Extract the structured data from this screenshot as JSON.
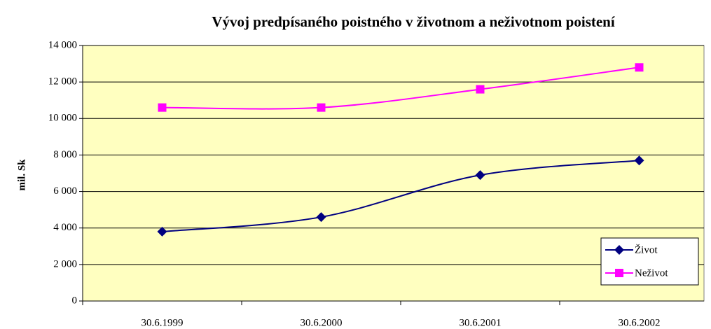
{
  "chart_data": {
    "type": "line",
    "title": "Vývoj predpísaného poistného v životnom a neživotnom poistení",
    "ylabel": "mil. Sk",
    "categories": [
      "30.6.1999",
      "30.6.2000",
      "30.6.2001",
      "30.6.2002"
    ],
    "series": [
      {
        "name": "Život",
        "color": "#000080",
        "marker": "diamond",
        "values": [
          3800,
          4600,
          6900,
          7700
        ]
      },
      {
        "name": "Neživot",
        "color": "#ff00ff",
        "marker": "square",
        "values": [
          10600,
          10600,
          11600,
          12800
        ]
      }
    ],
    "ylim": [
      0,
      14000
    ],
    "yticks": [
      0,
      {
        "value": 2000,
        "label": "2 000"
      },
      {
        "value": 4000,
        "label": "4 000"
      },
      {
        "value": 6000,
        "label": "6 000"
      },
      {
        "value": 8000,
        "label": "8 000"
      },
      {
        "value": 10000,
        "label": "10 000"
      },
      {
        "value": 12000,
        "label": "12 000"
      },
      {
        "value": 14000,
        "label": "14 000"
      }
    ],
    "grid": true,
    "smooth": true,
    "legend": "lower right",
    "plot_background": "#ffffc0"
  }
}
